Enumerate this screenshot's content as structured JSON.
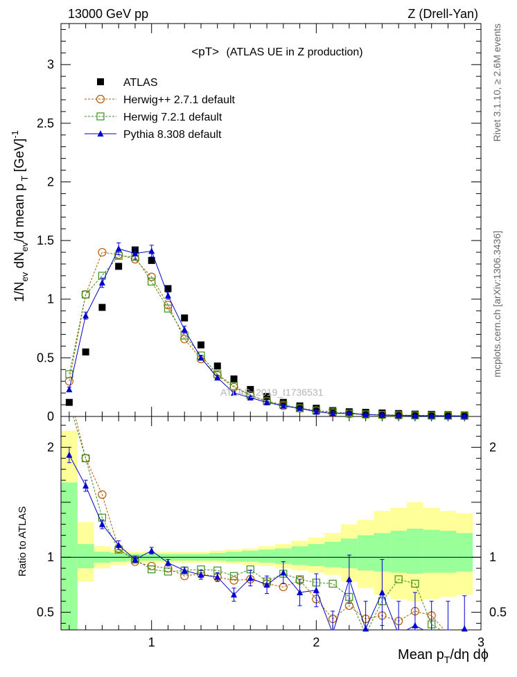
{
  "header": {
    "left": "13000 GeV pp",
    "right": "Z (Drell-Yan)",
    "plot_title": "<pT>",
    "plot_subtitle": "(ATLAS UE in Z production)",
    "side_top": "Rivet 3.1.10, ≥ 2.6M events",
    "side_bottom": "mcplots.cern.ch [arXiv:1306.3436]",
    "watermark": "ATLAS_2019_I1736531"
  },
  "colors": {
    "atlas": "#000000",
    "herwigpp": "#b35900",
    "herwig7": "#3a8f1a",
    "pythia": "#0000cc",
    "band_inner": "#99ff99",
    "band_outer": "#ffff99"
  },
  "chart_data": [
    {
      "id": "main",
      "type": "scatter",
      "ylabel": "1/N_ev dN_ev/d mean p_T [GeV]^-1",
      "xlim": [
        0.45,
        3.0
      ],
      "ylim": [
        0,
        3.35
      ],
      "x_ticks": [
        1,
        2,
        3
      ],
      "y_ticks": [
        0,
        0.5,
        1,
        1.5,
        2,
        2.5,
        3
      ],
      "y_tick_labels": [
        "0",
        "0.5",
        "1",
        "1.5",
        "2",
        "2.5",
        "3"
      ],
      "x": [
        0.5,
        0.6,
        0.7,
        0.8,
        0.9,
        1.0,
        1.1,
        1.2,
        1.3,
        1.4,
        1.5,
        1.6,
        1.7,
        1.8,
        1.9,
        2.0,
        2.1,
        2.2,
        2.3,
        2.4,
        2.5,
        2.6,
        2.7,
        2.8,
        2.9
      ],
      "series": [
        {
          "name": "ATLAS",
          "style": "square",
          "values": [
            0.12,
            0.55,
            0.93,
            1.28,
            1.42,
            1.33,
            1.09,
            0.84,
            0.61,
            0.43,
            0.32,
            0.23,
            0.17,
            0.12,
            0.09,
            0.07,
            0.05,
            0.04,
            0.035,
            0.03,
            0.025,
            0.02,
            0.018,
            0.015,
            0.013
          ]
        },
        {
          "name": "Herwig++ 2.7.1 default",
          "style": "circle",
          "values": [
            0.3,
            1.04,
            1.4,
            1.38,
            1.34,
            1.19,
            0.95,
            0.66,
            0.49,
            0.35,
            0.25,
            0.18,
            0.13,
            0.09,
            0.07,
            0.05,
            0.03,
            0.022,
            0.016,
            0.012,
            0.009,
            0.008,
            0.007,
            0.006,
            0.005
          ]
        },
        {
          "name": "Herwig 7.2.1 default",
          "style": "open-square",
          "values": [
            0.36,
            1.04,
            1.2,
            1.37,
            1.36,
            1.15,
            0.92,
            0.69,
            0.52,
            0.36,
            0.26,
            0.18,
            0.13,
            0.1,
            0.07,
            0.05,
            0.04,
            0.025,
            0.018,
            0.015,
            0.012,
            0.01,
            0.008,
            0.007,
            0.006
          ]
        },
        {
          "name": "Pythia 8.308 default",
          "style": "triangle",
          "values": [
            0.23,
            0.86,
            1.14,
            1.43,
            1.39,
            1.41,
            1.03,
            0.74,
            0.5,
            0.33,
            0.2,
            0.16,
            0.12,
            0.09,
            0.07,
            0.04,
            0.025,
            0.03,
            0.015,
            0.012,
            0.008,
            0.006,
            0.005,
            0.004,
            0.003
          ]
        }
      ],
      "pythia_errors": [
        0.02,
        0.03,
        0.04,
        0.05,
        0.05,
        0.05,
        0.03,
        0.03,
        0.02,
        0.02,
        0.01,
        0.01,
        0.01,
        0.01,
        0.01,
        0.01,
        0.005,
        0.005,
        0.005,
        0.005,
        0.005,
        0.005,
        0.005,
        0.005,
        0.005
      ],
      "legend": "top-left"
    },
    {
      "id": "ratio",
      "type": "line",
      "ylabel": "Ratio to ATLAS",
      "xlabel": "Mean p_T/dη dϕ",
      "xlim": [
        0.45,
        3.0
      ],
      "ylim": [
        0.34,
        2.28
      ],
      "x_ticks": [
        1,
        2,
        3
      ],
      "x_tick_labels": [
        "1",
        "2",
        "3"
      ],
      "y_ticks": [
        0.5,
        1,
        2
      ],
      "y_tick_labels": [
        "0.5",
        "1",
        "2"
      ],
      "x": [
        0.5,
        0.6,
        0.7,
        0.8,
        0.9,
        1.0,
        1.1,
        1.2,
        1.3,
        1.4,
        1.5,
        1.6,
        1.7,
        1.8,
        1.9,
        2.0,
        2.1,
        2.2,
        2.3,
        2.4,
        2.5,
        2.6,
        2.7,
        2.8,
        2.9
      ],
      "band_outer_lo": [
        0.3,
        0.78,
        0.9,
        0.93,
        0.95,
        0.95,
        0.95,
        0.95,
        0.95,
        0.95,
        0.94,
        0.93,
        0.92,
        0.9,
        0.88,
        0.86,
        0.84,
        0.78,
        0.72,
        0.66,
        0.62,
        0.6,
        0.62,
        0.64,
        0.66
      ],
      "band_outer_hi": [
        2.15,
        1.32,
        1.1,
        1.07,
        1.05,
        1.05,
        1.05,
        1.05,
        1.05,
        1.06,
        1.07,
        1.08,
        1.1,
        1.12,
        1.15,
        1.18,
        1.22,
        1.3,
        1.34,
        1.42,
        1.45,
        1.5,
        1.45,
        1.42,
        1.4
      ],
      "band_inner_lo": [
        0.3,
        0.9,
        0.95,
        0.96,
        0.97,
        0.97,
        0.97,
        0.97,
        0.97,
        0.97,
        0.96,
        0.96,
        0.95,
        0.94,
        0.93,
        0.92,
        0.91,
        0.9,
        0.88,
        0.87,
        0.86,
        0.85,
        0.86,
        0.86,
        0.87
      ],
      "band_inner_hi": [
        1.68,
        1.12,
        1.05,
        1.04,
        1.03,
        1.03,
        1.03,
        1.03,
        1.03,
        1.04,
        1.05,
        1.06,
        1.07,
        1.08,
        1.1,
        1.12,
        1.14,
        1.17,
        1.2,
        1.22,
        1.24,
        1.26,
        1.25,
        1.24,
        1.22
      ],
      "series": [
        {
          "name": "Herwig++ 2.7.1 default",
          "style": "circle",
          "values": [
            2.5,
            1.9,
            1.57,
            1.08,
            0.96,
            0.92,
            0.9,
            0.83,
            0.85,
            0.82,
            0.79,
            0.8,
            0.76,
            0.73,
            0.79,
            0.62,
            0.44,
            0.56,
            0.44,
            0.47,
            0.42,
            0.51,
            0.47,
            0.3,
            0.3
          ]
        },
        {
          "name": "Herwig 7.2.1 default",
          "style": "open-square",
          "values": [
            2.4,
            1.9,
            1.36,
            1.07,
            0.98,
            0.89,
            0.87,
            0.88,
            0.89,
            0.88,
            0.83,
            0.89,
            0.78,
            0.85,
            0.8,
            0.77,
            0.76,
            0.64,
            0.3,
            0.6,
            0.8,
            0.76,
            0.39,
            0.3,
            0.3
          ]
        },
        {
          "name": "Pythia 8.308 default",
          "style": "triangle",
          "values": [
            1.93,
            1.65,
            1.3,
            1.11,
            0.98,
            1.06,
            0.95,
            0.88,
            0.84,
            0.82,
            0.66,
            0.81,
            0.75,
            0.86,
            0.68,
            0.7,
            0.31,
            0.8,
            0.35,
            0.68,
            0.3,
            0.38,
            0.3,
            0.3,
            0.35
          ]
        }
      ],
      "pythia_errors": [
        0.07,
        0.05,
        0.04,
        0.04,
        0.03,
        0.03,
        0.03,
        0.03,
        0.04,
        0.04,
        0.06,
        0.07,
        0.08,
        0.1,
        0.12,
        0.15,
        0.2,
        0.22,
        0.25,
        0.3,
        0.3,
        0.3,
        0.3,
        0.3,
        0.3
      ]
    }
  ]
}
